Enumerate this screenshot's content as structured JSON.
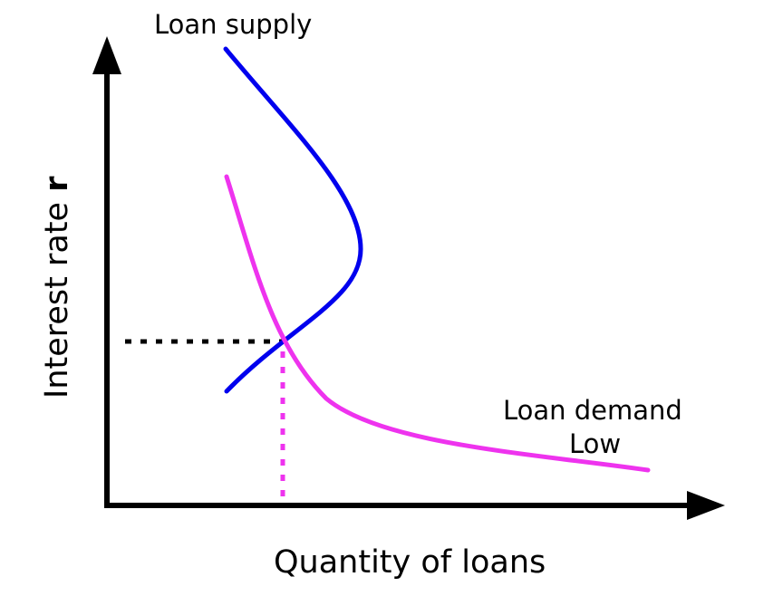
{
  "diagram": {
    "labels": {
      "supply": "Loan supply",
      "demand": "Loan demand",
      "demand_sub": "Low",
      "x_axis": "Quantity of loans",
      "y_axis_text": "Interest rate ",
      "y_axis_symbol": "r"
    },
    "colors": {
      "supply": "#0000ee",
      "demand": "#ee33ee",
      "axis": "#000000",
      "equilibrium_rate_guide": "#000000",
      "equilibrium_quantity_guide": "#ee33ee"
    }
  }
}
